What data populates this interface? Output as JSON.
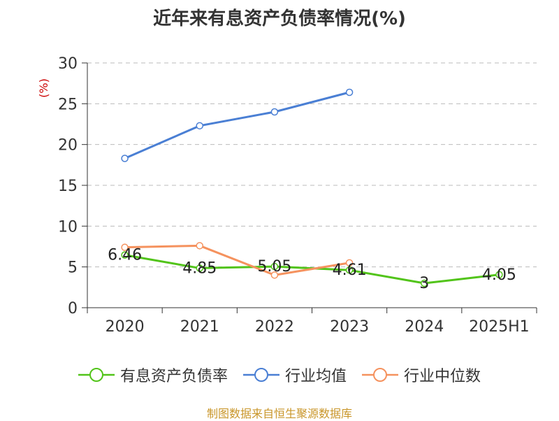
{
  "title": "近年来有息资产负债率情况(%)",
  "source_note": "制图数据来自恒生聚源数据库",
  "chart_data": {
    "type": "line",
    "title": "近年来有息资产负债率情况(%)",
    "categories": [
      "2020",
      "2021",
      "2022",
      "2023",
      "2024",
      "2025H1"
    ],
    "ylabel": "(%)",
    "xlabel": "",
    "ylim": [
      0,
      30
    ],
    "yticks": [
      "0",
      "5",
      "10",
      "15",
      "20",
      "25",
      "30"
    ],
    "grid": true,
    "legend_position": "bottom",
    "series": [
      {
        "name": "有息资产负债率",
        "color": "#52c41a",
        "values": [
          6.46,
          4.85,
          5.05,
          4.61,
          3,
          4.05
        ],
        "labels": [
          "6.46",
          "4.85",
          "5.05",
          "4.61",
          "3",
          "4.05"
        ]
      },
      {
        "name": "行业均值",
        "color": "#4a7fd4",
        "values": [
          18.3,
          22.3,
          24.0,
          26.4,
          null,
          null
        ],
        "labels": []
      },
      {
        "name": "行业中位数",
        "color": "#f5925e",
        "values": [
          7.4,
          7.6,
          4.0,
          5.5,
          null,
          null
        ],
        "labels": []
      }
    ]
  }
}
